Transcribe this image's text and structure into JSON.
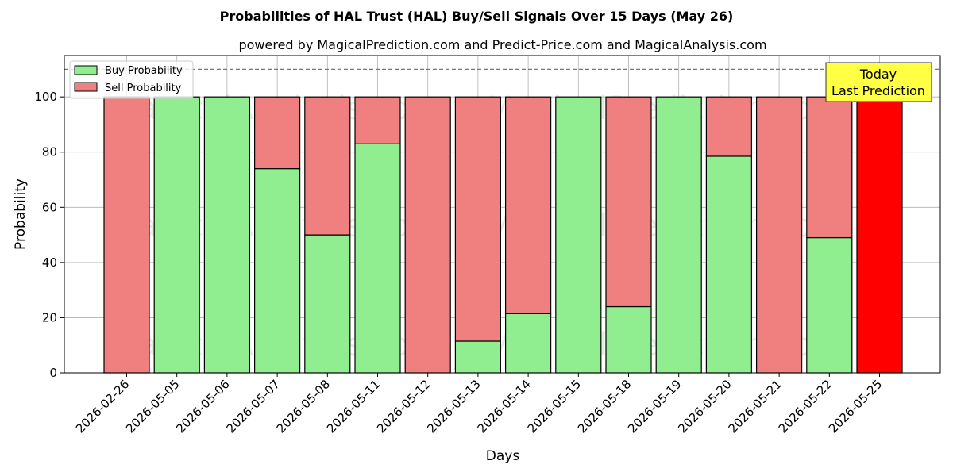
{
  "chart_data": {
    "type": "bar",
    "stacked": true,
    "title": "Probabilities of HAL Trust (HAL) Buy/Sell Signals Over 15 Days (May 26)",
    "subtitle": "powered by MagicalPrediction.com and Predict-Price.com and MagicalAnalysis.com",
    "xlabel": "Days",
    "ylabel": "Probability",
    "ylim": [
      0,
      115
    ],
    "yticks": [
      0,
      20,
      40,
      60,
      80,
      100
    ],
    "grid": true,
    "legend_position": "top-left",
    "reference_line": {
      "y": 110,
      "style": "dashed"
    },
    "categories": [
      "2026-02-26",
      "2026-05-05",
      "2026-05-06",
      "2026-05-07",
      "2026-05-08",
      "2026-05-11",
      "2026-05-12",
      "2026-05-13",
      "2026-05-14",
      "2026-05-15",
      "2026-05-18",
      "2026-05-19",
      "2026-05-20",
      "2026-05-21",
      "2026-05-22",
      "2026-05-25"
    ],
    "series": [
      {
        "name": "Buy Probability",
        "color": "#90ee90",
        "values": [
          0,
          100,
          100,
          74,
          50,
          83,
          0,
          11.5,
          21.5,
          100,
          24,
          100,
          78.5,
          0,
          49,
          0
        ]
      },
      {
        "name": "Sell Probability",
        "color": "#f08080",
        "values": [
          100,
          0,
          0,
          26,
          50,
          17,
          100,
          88.5,
          78.5,
          0,
          76,
          0,
          21.5,
          100,
          51,
          100
        ]
      }
    ],
    "highlight": {
      "category": "2026-05-25",
      "color": "#ff0000"
    },
    "annotation": {
      "line1": "Today",
      "line2": "Last Prediction",
      "background": "#ffff44"
    },
    "watermarks": [
      "MagicalAnalysis.com",
      "MagicalPrediction.com"
    ]
  }
}
